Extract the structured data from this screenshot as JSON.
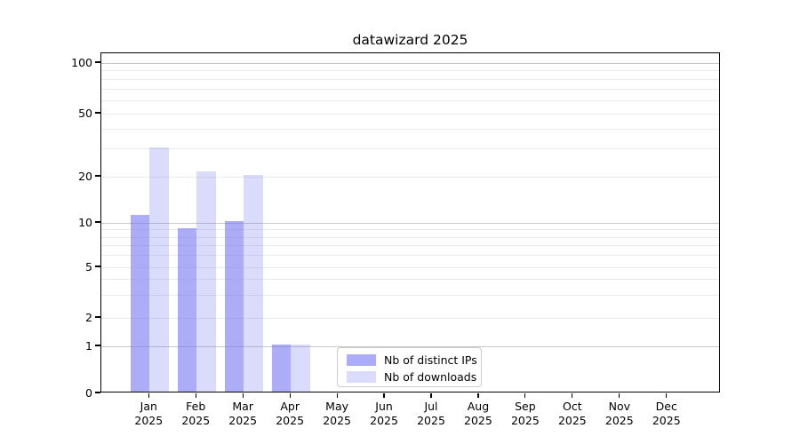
{
  "chart_data": {
    "type": "bar",
    "title": "datawizard 2025",
    "categories": [
      "Jan",
      "Feb",
      "Mar",
      "Apr",
      "May",
      "Jun",
      "Jul",
      "Aug",
      "Sep",
      "Oct",
      "Nov",
      "Dec"
    ],
    "category_year": "2025",
    "series": [
      {
        "key": "distinct-ips",
        "name": "Nb of distinct IPs",
        "values": [
          11,
          9,
          10,
          1,
          0,
          0,
          0,
          0,
          0,
          0,
          0,
          0
        ],
        "color": "rgba(122,122,242,0.62)"
      },
      {
        "key": "downloads",
        "name": "Nb of downloads",
        "values": [
          30,
          21,
          20,
          1,
          0,
          0,
          0,
          0,
          0,
          0,
          0,
          0
        ],
        "color": "rgba(122,122,242,0.27)"
      }
    ],
    "y_axis": {
      "scale": "pseudo-log",
      "tick_labels": [
        "0",
        "1",
        "2",
        "5",
        "10",
        "20",
        "50",
        "100"
      ],
      "tick_values": [
        0,
        1,
        2,
        5,
        10,
        20,
        50,
        100
      ],
      "range": [
        0,
        120
      ]
    },
    "gridlines": {
      "emphasized": [
        1,
        10,
        100
      ],
      "light": [
        2,
        5,
        20,
        50,
        3,
        4,
        6,
        7,
        8,
        9,
        30,
        40,
        60,
        70,
        80,
        90
      ]
    },
    "legend": {
      "position": "lower-center-inside"
    },
    "colors": {
      "emphasized_grid": "#c6c6c6",
      "light_grid": "#ebebeb",
      "spine": "#000000",
      "text": "#000000",
      "background": "#ffffff"
    }
  }
}
